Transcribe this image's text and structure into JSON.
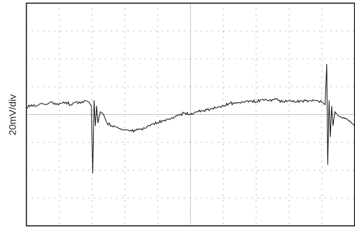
{
  "chart_data": {
    "type": "line",
    "ylabel": "20mV/div",
    "xlim": [
      0,
      10
    ],
    "ylim": [
      -4,
      4
    ],
    "grid": true,
    "grid_style": "dotted",
    "x_divisions": 10,
    "y_divisions": 8,
    "trace_color": "#111111",
    "series": [
      {
        "x": [
          0,
          0.15,
          0.3,
          0.45,
          0.6,
          0.75,
          0.9,
          1.05,
          1.2,
          1.35,
          1.5,
          1.65,
          1.8,
          1.9,
          1.98,
          2.02,
          2.06,
          2.1,
          2.14,
          2.18,
          2.25,
          2.35,
          2.45,
          2.6,
          2.75,
          2.9,
          3.05,
          3.2,
          3.4,
          3.6,
          3.8,
          4.0,
          4.2,
          4.4,
          4.6,
          4.8,
          5.0,
          5.2,
          5.4,
          5.6,
          5.8,
          6.0,
          6.2,
          6.4,
          6.6,
          6.8,
          7.0,
          7.2,
          7.4,
          7.6,
          7.8,
          8.0,
          8.2,
          8.4,
          8.6,
          8.8,
          9.0,
          9.1,
          9.15,
          9.18,
          9.22,
          9.26,
          9.3,
          9.34,
          9.4,
          9.5,
          9.6,
          9.75,
          9.9,
          10.0
        ],
        "y": [
          0.25,
          0.35,
          0.3,
          0.4,
          0.35,
          0.45,
          0.35,
          0.4,
          0.45,
          0.35,
          0.45,
          0.4,
          0.5,
          0.45,
          0.3,
          -2.1,
          0.5,
          -0.4,
          0.3,
          -0.3,
          0.1,
          0.0,
          -0.3,
          -0.4,
          -0.45,
          -0.55,
          -0.55,
          -0.6,
          -0.55,
          -0.5,
          -0.35,
          -0.3,
          -0.2,
          -0.15,
          -0.05,
          0.05,
          0.0,
          0.1,
          0.15,
          0.2,
          0.25,
          0.3,
          0.4,
          0.4,
          0.45,
          0.5,
          0.45,
          0.55,
          0.5,
          0.55,
          0.45,
          0.5,
          0.45,
          0.5,
          0.5,
          0.5,
          0.45,
          0.35,
          1.8,
          -1.8,
          0.5,
          -0.8,
          0.3,
          -0.4,
          0.1,
          -0.05,
          -0.1,
          -0.15,
          -0.3,
          -0.4
        ]
      }
    ]
  }
}
